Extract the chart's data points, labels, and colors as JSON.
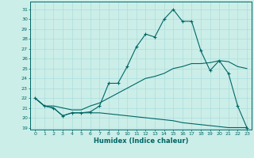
{
  "xlabel": "Humidex (Indice chaleur)",
  "bg_color": "#cceee8",
  "line_color": "#006666",
  "grid_color": "#aadddd",
  "xlim": [
    -0.5,
    23.5
  ],
  "ylim": [
    18.8,
    31.8
  ],
  "yticks": [
    19,
    20,
    21,
    22,
    23,
    24,
    25,
    26,
    27,
    28,
    29,
    30,
    31
  ],
  "xticks": [
    0,
    1,
    2,
    3,
    4,
    5,
    6,
    7,
    8,
    9,
    10,
    11,
    12,
    13,
    14,
    15,
    16,
    17,
    18,
    19,
    20,
    21,
    22,
    23
  ],
  "series1_x": [
    0,
    1,
    2,
    3,
    4,
    5,
    6,
    7,
    8,
    9,
    10,
    11,
    12,
    13,
    14,
    15,
    16,
    17,
    18,
    19,
    20,
    21,
    22,
    23
  ],
  "series1_y": [
    22.0,
    21.2,
    21.0,
    20.2,
    20.5,
    20.5,
    20.6,
    21.2,
    23.5,
    23.5,
    25.2,
    27.2,
    28.5,
    28.2,
    30.0,
    31.0,
    29.8,
    29.8,
    26.8,
    24.8,
    25.8,
    24.5,
    21.2,
    19.0
  ],
  "series2_x": [
    0,
    1,
    2,
    3,
    4,
    5,
    6,
    7,
    8,
    9,
    10,
    11,
    12,
    13,
    14,
    15,
    16,
    17,
    18,
    19,
    20,
    21,
    22,
    23
  ],
  "series2_y": [
    22.0,
    21.2,
    21.2,
    21.0,
    20.8,
    20.8,
    21.2,
    21.5,
    22.0,
    22.5,
    23.0,
    23.5,
    24.0,
    24.2,
    24.5,
    25.0,
    25.2,
    25.5,
    25.5,
    25.6,
    25.8,
    25.7,
    25.2,
    25.0
  ],
  "series3_x": [
    0,
    1,
    2,
    3,
    4,
    5,
    6,
    7,
    8,
    9,
    10,
    11,
    12,
    13,
    14,
    15,
    16,
    17,
    18,
    19,
    20,
    21,
    22,
    23
  ],
  "series3_y": [
    22.0,
    21.2,
    21.0,
    20.2,
    20.5,
    20.5,
    20.5,
    20.5,
    20.4,
    20.3,
    20.2,
    20.1,
    20.0,
    19.9,
    19.8,
    19.7,
    19.5,
    19.4,
    19.3,
    19.2,
    19.1,
    19.0,
    19.0,
    19.0
  ]
}
